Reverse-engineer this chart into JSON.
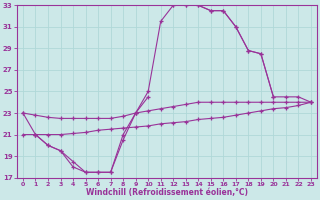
{
  "xlabel": "Windchill (Refroidissement éolien,°C)",
  "bg_color": "#cce8e8",
  "line_color": "#993399",
  "grid_color": "#b0d8d8",
  "xlim": [
    -0.5,
    23.5
  ],
  "ylim": [
    17,
    33
  ],
  "xticks": [
    0,
    1,
    2,
    3,
    4,
    5,
    6,
    7,
    8,
    9,
    10,
    11,
    12,
    13,
    14,
    15,
    16,
    17,
    18,
    19,
    20,
    21,
    22,
    23
  ],
  "yticks": [
    17,
    19,
    21,
    23,
    25,
    27,
    29,
    31,
    33
  ],
  "lines": [
    {
      "x": [
        0,
        1,
        2,
        3,
        4,
        5,
        6,
        7,
        8,
        9,
        10,
        11,
        12,
        13,
        14,
        15,
        16,
        17,
        18,
        19,
        20
      ],
      "y": [
        23,
        21,
        20,
        19.5,
        18,
        17.5,
        17.5,
        17.5,
        20.5,
        23,
        25,
        31.5,
        33,
        33,
        33,
        32.5,
        32.5,
        31,
        28.8,
        28.5,
        24.5
      ]
    },
    {
      "x": [
        1,
        2,
        3,
        4,
        5,
        6,
        7,
        8,
        9,
        10
      ],
      "y": [
        21,
        20,
        19.5,
        18.5,
        17.5,
        17.5,
        17.5,
        21,
        23,
        24.5
      ]
    },
    {
      "x": [
        0,
        1,
        2,
        3,
        4,
        5,
        6,
        7,
        8,
        9,
        10,
        11,
        12,
        13,
        14,
        15,
        16,
        17,
        18,
        19,
        20,
        21,
        22,
        23
      ],
      "y": [
        23,
        22.8,
        22.6,
        22.5,
        22.5,
        22.5,
        22.5,
        22.5,
        22.7,
        23,
        23.2,
        23.4,
        23.6,
        23.8,
        24,
        24,
        24,
        24,
        24,
        24,
        24,
        24,
        24,
        24
      ]
    },
    {
      "x": [
        0,
        1,
        2,
        3,
        4,
        5,
        6,
        7,
        8,
        9,
        10,
        11,
        12,
        13,
        14,
        15,
        16,
        17,
        18,
        19,
        20,
        21,
        22,
        23
      ],
      "y": [
        21,
        21,
        21,
        21,
        21.1,
        21.2,
        21.4,
        21.5,
        21.6,
        21.7,
        21.8,
        22,
        22.1,
        22.2,
        22.4,
        22.5,
        22.6,
        22.8,
        23,
        23.2,
        23.4,
        23.5,
        23.7,
        24
      ]
    },
    {
      "x": [
        12,
        13,
        14,
        15,
        16,
        17,
        18,
        19,
        20,
        21,
        22,
        23
      ],
      "y": [
        33,
        33,
        33,
        32.5,
        32.5,
        31,
        28.8,
        28.5,
        24.5,
        24.5,
        24.5,
        24
      ]
    }
  ]
}
